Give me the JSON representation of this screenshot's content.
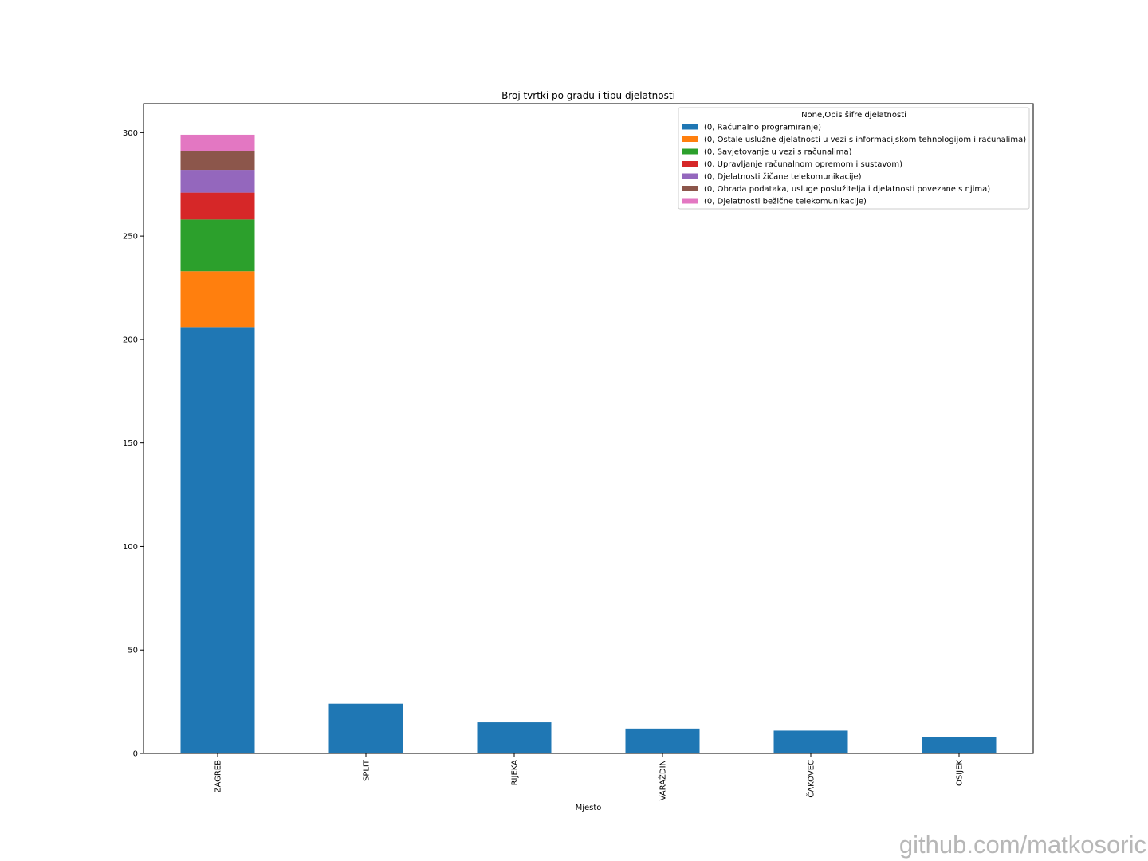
{
  "watermark": "github.com/matkosoric",
  "chart_data": {
    "type": "bar",
    "stacked": true,
    "title": "Broj tvrtki po gradu i tipu djelatnosti",
    "xlabel": "Mjesto",
    "ylabel": "",
    "ylim": [
      0,
      314
    ],
    "yticks": [
      0,
      50,
      100,
      150,
      200,
      250,
      300
    ],
    "grid": false,
    "legend_position": "top-right",
    "legend_title": "None,Opis šifre djelatnosti",
    "categories": [
      "ZAGREB",
      "SPLIT",
      "RIJEKA",
      "VARAŽDIN",
      "ČAKOVEC",
      "OSIJEK"
    ],
    "series": [
      {
        "name": "(0, Računalno programiranje)",
        "color": "#1f77b4",
        "values": [
          206,
          24,
          15,
          12,
          11,
          8
        ]
      },
      {
        "name": "(0, Ostale uslužne djelatnosti u vezi s informacijskom tehnologijom i računalima)",
        "color": "#ff7f0e",
        "values": [
          27,
          0,
          0,
          0,
          0,
          0
        ]
      },
      {
        "name": "(0, Savjetovanje u vezi s računalima)",
        "color": "#2ca02c",
        "values": [
          25,
          0,
          0,
          0,
          0,
          0
        ]
      },
      {
        "name": "(0, Upravljanje računalnom opremom i sustavom)",
        "color": "#d62728",
        "values": [
          13,
          0,
          0,
          0,
          0,
          0
        ]
      },
      {
        "name": "(0, Djelatnosti žičane telekomunikacije)",
        "color": "#9467bd",
        "values": [
          11,
          0,
          0,
          0,
          0,
          0
        ]
      },
      {
        "name": "(0, Obrada podataka, usluge poslužitelja i djelatnosti povezane s njima)",
        "color": "#8c564b",
        "values": [
          9,
          0,
          0,
          0,
          0,
          0
        ]
      },
      {
        "name": "(0, Djelatnosti bežične telekomunikacije)",
        "color": "#e377c2",
        "values": [
          8,
          0,
          0,
          0,
          0,
          0
        ]
      }
    ]
  }
}
